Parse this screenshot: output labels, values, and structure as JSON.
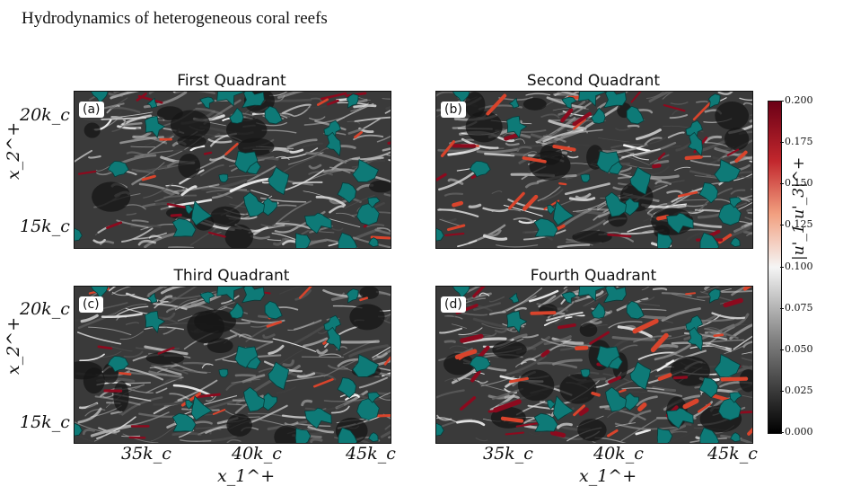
{
  "running_head": "Hydrodynamics of heterogeneous coral reefs",
  "panels": [
    {
      "title": "First Quadrant",
      "label": "(a)"
    },
    {
      "title": "Second Quadrant",
      "label": "(b)"
    },
    {
      "title": "Third Quadrant",
      "label": "(c)"
    },
    {
      "title": "Fourth Quadrant",
      "label": "(d)"
    }
  ],
  "axes": {
    "y_ticks": [
      "20k_c",
      "15k_c"
    ],
    "x_ticks": [
      "35k_c",
      "40k_c",
      "45k_c"
    ],
    "y_label": "x_2^+",
    "x_label": "x_1^+"
  },
  "colorbar": {
    "label": "|u'_1 u'_3|^+",
    "ticks": [
      "0.200",
      "0.175",
      "0.150",
      "0.125",
      "0.100",
      "0.075",
      "0.050",
      "0.025",
      "0.000"
    ],
    "colors": {
      "low": "#000000",
      "mid": "#f5f5f5",
      "high": "#6b0016"
    }
  },
  "colors": {
    "coral": "#0e7a77",
    "coral_edge": "#063c3a"
  }
}
